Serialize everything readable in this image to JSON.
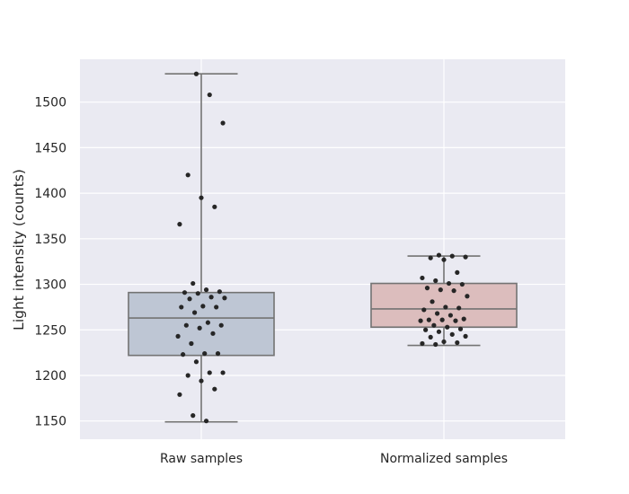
{
  "chart_data": {
    "type": "box",
    "title": "",
    "xlabel": "",
    "ylabel": "Light intensity (counts)",
    "ylim": [
      1130,
      1547
    ],
    "yticks": [
      1150,
      1200,
      1250,
      1300,
      1350,
      1400,
      1450,
      1500
    ],
    "grid": true,
    "background": "#eaeaf2",
    "categories": [
      "Raw samples",
      "Normalized samples"
    ],
    "boxes": [
      {
        "name": "Raw samples",
        "color": "#bec6d4",
        "whisker_low": 1149,
        "q1": 1222,
        "median": 1263,
        "q3": 1291,
        "whisker_high": 1531,
        "points": [
          1531,
          1508,
          1477,
          1420,
          1395,
          1385,
          1366,
          1301,
          1294,
          1292,
          1291,
          1290,
          1286,
          1285,
          1284,
          1276,
          1275,
          1275,
          1269,
          1258,
          1255,
          1255,
          1252,
          1246,
          1243,
          1235,
          1224,
          1224,
          1223,
          1215,
          1203,
          1203,
          1200,
          1194,
          1185,
          1179,
          1156,
          1150
        ]
      },
      {
        "name": "Normalized samples",
        "color": "#dcbdbd",
        "whisker_low": 1233,
        "q1": 1253,
        "median": 1273,
        "q3": 1301,
        "whisker_high": 1331,
        "points": [
          1332,
          1331,
          1330,
          1329,
          1327,
          1313,
          1307,
          1304,
          1301,
          1300,
          1296,
          1294,
          1293,
          1287,
          1281,
          1275,
          1274,
          1272,
          1268,
          1266,
          1262,
          1261,
          1261,
          1260,
          1260,
          1255,
          1253,
          1251,
          1250,
          1248,
          1245,
          1243,
          1242,
          1237,
          1236,
          1235,
          1234
        ]
      }
    ],
    "colors": {
      "grid": "#ffffff",
      "box_edge": "#737373",
      "point": "#262626"
    }
  }
}
